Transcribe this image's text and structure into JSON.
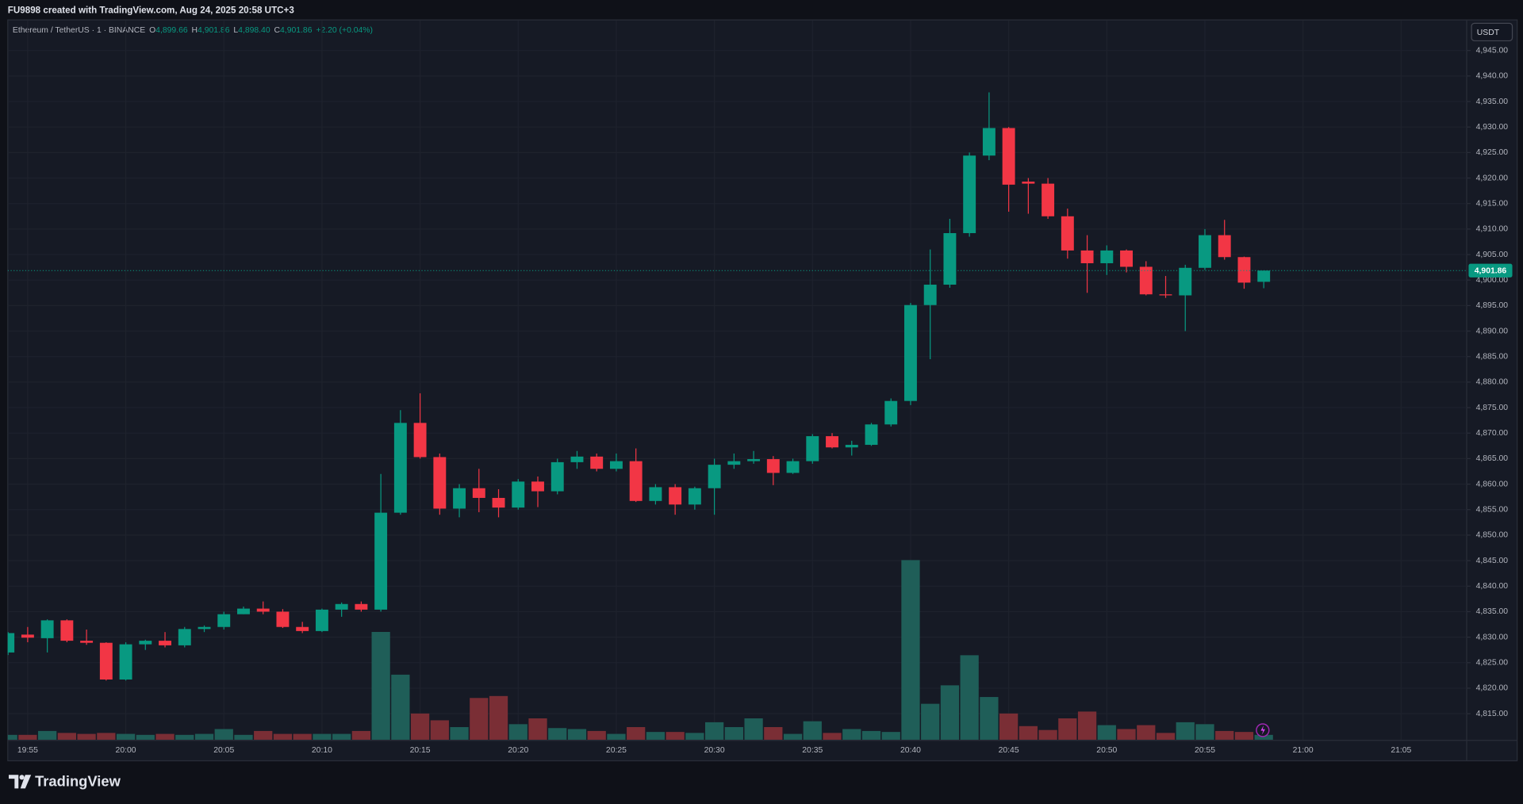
{
  "header": {
    "title": "FU9898 created with TradingView.com, Aug 24, 2025 20:58 UTC+3"
  },
  "footer": {
    "brand": "TradingView"
  },
  "chart_data": {
    "type": "candlestick",
    "symbol": "Ethereum / TetherUS · 1 · BINANCE",
    "legend": {
      "o_key": "O",
      "o": "4,899.66",
      "h_key": "H",
      "h": "4,901.86",
      "l_key": "L",
      "l": "4,898.40",
      "c_key": "C",
      "c": "4,901.86",
      "change": "+2.20 (+0.04%)"
    },
    "currency": "USDT",
    "last_price_label": "4,901.86",
    "up_color": "#089981",
    "down_color": "#f23645",
    "volume_up_color": "#1f5e58",
    "volume_down_color": "#7a2e35",
    "grid": true,
    "categories": [
      null,
      "19:55",
      null,
      null,
      null,
      null,
      "20:00",
      null,
      null,
      null,
      null,
      "20:05",
      null,
      null,
      null,
      null,
      "20:10",
      null,
      null,
      null,
      null,
      "20:15",
      null,
      null,
      null,
      null,
      "20:20",
      null,
      null,
      null,
      null,
      "20:25",
      null,
      null,
      null,
      null,
      "20:30",
      null,
      null,
      null,
      null,
      "20:35",
      null,
      null,
      null,
      null,
      "20:40",
      null,
      null,
      null,
      null,
      "20:45",
      null,
      null,
      null,
      null,
      "20:50",
      null,
      null,
      null,
      null,
      "20:55",
      null,
      null,
      null,
      null,
      "21:00",
      null,
      null,
      null,
      null,
      "21:05",
      null,
      null
    ],
    "open": [
      4827,
      4830.5,
      4829.8,
      4833.3,
      4829.3,
      4828.9,
      4821.7,
      4828.6,
      4829.3,
      4828.4,
      4831.6,
      4832,
      4834.5,
      4835.6,
      4835,
      4832,
      4831.2,
      4835.4,
      4836.5,
      4835.4,
      4854.4,
      4872,
      4865.3,
      4855.2,
      4859.2,
      4857.3,
      4855.4,
      4860.5,
      4858.6,
      4864.3,
      4865.4,
      4863,
      4864.5,
      4856.7,
      4859.4,
      4856,
      4859.2,
      4863.8,
      4864.5,
      4864.9,
      4862.2,
      4864.5,
      4869.4,
      4867.2,
      4867.7,
      4871.7,
      4876.3,
      4895.1,
      4899.1,
      4909.2,
      4924.4,
      4929.8,
      4919.3,
      4918.9,
      4912.5,
      4905.8,
      4903.3,
      4905.8,
      4902.6,
      4897.2,
      4897,
      4902.4,
      4908.8,
      4904.5,
      4899.66,
      null,
      null,
      null,
      null,
      null,
      null,
      null,
      null,
      null
    ],
    "high": [
      4831,
      4832,
      4833.5,
      4833.5,
      4831.5,
      4829,
      4829,
      4829.5,
      4831,
      4832,
      4832.3,
      4835,
      4836,
      4837,
      4835.5,
      4833,
      4835.6,
      4836.8,
      4837,
      4862,
      4874.5,
      4877.8,
      4866,
      4860,
      4863,
      4859,
      4861,
      4861.5,
      4865,
      4866.5,
      4866,
      4866,
      4867,
      4860,
      4860,
      4859.5,
      4865,
      4866,
      4866.5,
      4865.5,
      4865,
      4869.8,
      4870,
      4868.5,
      4872,
      4876.8,
      4895.5,
      4906,
      4912,
      4925,
      4936.8,
      4930,
      4920,
      4920,
      4914,
      4908.8,
      4906.8,
      4906,
      4903.7,
      4900.8,
      4903,
      4910,
      4911.8,
      4904.6,
      4901.86,
      null,
      null,
      null,
      null,
      null,
      null,
      null,
      null,
      null
    ],
    "low": [
      4826.5,
      4829,
      4827,
      4829,
      4828.5,
      4821.5,
      4821.5,
      4827.5,
      4828,
      4828,
      4831,
      4831.5,
      4834.5,
      4834.5,
      4831.8,
      4830.8,
      4831,
      4834,
      4835,
      4835,
      4854,
      4865,
      4854,
      4853.5,
      4854.5,
      4853.5,
      4855,
      4855.5,
      4858,
      4863,
      4862.5,
      4862.5,
      4856.5,
      4856,
      4854,
      4855,
      4854,
      4863,
      4864,
      4859.8,
      4862,
      4864,
      4867,
      4865.6,
      4867.5,
      4871.3,
      4875.5,
      4884.5,
      4898.5,
      4908.5,
      4923.5,
      4913.4,
      4913,
      4912,
      4904.2,
      4897.5,
      4901,
      4901.5,
      4897,
      4896.5,
      4890,
      4902,
      4904,
      4898.3,
      4898.4,
      null,
      null,
      null,
      null,
      null,
      null,
      null,
      null,
      null
    ],
    "close": [
      4830.8,
      4829.9,
      4833.3,
      4829.3,
      4828.9,
      4821.7,
      4828.6,
      4829.3,
      4828.4,
      4831.6,
      4832,
      4834.5,
      4835.6,
      4835,
      4832,
      4831.2,
      4835.4,
      4836.5,
      4835.4,
      4854.4,
      4872,
      4865.3,
      4855.2,
      4859.2,
      4857.3,
      4855.4,
      4860.5,
      4858.6,
      4864.3,
      4865.4,
      4863,
      4864.5,
      4856.7,
      4859.4,
      4856,
      4859.2,
      4863.8,
      4864.5,
      4864.9,
      4862.2,
      4864.5,
      4869.4,
      4867.2,
      4867.7,
      4871.7,
      4876.3,
      4895.1,
      4899.1,
      4909.2,
      4924.4,
      4929.8,
      4918.7,
      4918.9,
      4912.5,
      4905.8,
      4903.3,
      4905.8,
      4902.6,
      4897.2,
      4897,
      4902.4,
      4908.8,
      4904.5,
      4899.5,
      4901.86,
      null,
      null,
      null,
      null,
      null,
      null,
      null,
      null,
      null
    ],
    "volume": [
      5,
      5,
      9,
      7,
      6,
      7,
      6,
      5,
      6,
      5,
      6,
      11,
      5,
      9,
      6,
      6,
      6,
      6,
      9,
      111,
      67,
      27,
      20,
      13,
      43,
      45,
      16,
      22,
      12,
      11,
      9,
      6,
      13,
      8,
      8,
      7,
      18,
      13,
      22,
      13,
      6,
      19,
      7,
      11,
      9,
      8,
      185,
      37,
      56,
      87,
      44,
      27,
      14,
      10,
      22,
      29,
      15,
      11,
      15,
      7,
      18,
      16,
      9,
      8,
      5,
      null,
      null,
      null,
      null,
      null,
      null,
      null,
      null,
      null
    ],
    "ylim": [
      4809.9,
      4950.7
    ],
    "yticks": [
      {
        "value": 4815,
        "label": "4,815.00"
      },
      {
        "value": 4820,
        "label": "4,820.00"
      },
      {
        "value": 4825,
        "label": "4,825.00"
      },
      {
        "value": 4830,
        "label": "4,830.00"
      },
      {
        "value": 4835,
        "label": "4,835.00"
      },
      {
        "value": 4840,
        "label": "4,840.00"
      },
      {
        "value": 4845,
        "label": "4,845.00"
      },
      {
        "value": 4850,
        "label": "4,850.00"
      },
      {
        "value": 4855,
        "label": "4,855.00"
      },
      {
        "value": 4860,
        "label": "4,860.00"
      },
      {
        "value": 4865,
        "label": "4,865.00"
      },
      {
        "value": 4870,
        "label": "4,870.00"
      },
      {
        "value": 4875,
        "label": "4,875.00"
      },
      {
        "value": 4880,
        "label": "4,880.00"
      },
      {
        "value": 4885,
        "label": "4,885.00"
      },
      {
        "value": 4890,
        "label": "4,890.00"
      },
      {
        "value": 4895,
        "label": "4,895.00"
      },
      {
        "value": 4900,
        "label": "4,900.00"
      },
      {
        "value": 4905,
        "label": "4,905.00"
      },
      {
        "value": 4910,
        "label": "4,910.00"
      },
      {
        "value": 4915,
        "label": "4,915.00"
      },
      {
        "value": 4920,
        "label": "4,920.00"
      },
      {
        "value": 4925,
        "label": "4,925.00"
      },
      {
        "value": 4930,
        "label": "4,930.00"
      },
      {
        "value": 4935,
        "label": "4,935.00"
      },
      {
        "value": 4940,
        "label": "4,940.00"
      },
      {
        "value": 4945,
        "label": "4,945.00"
      }
    ]
  }
}
